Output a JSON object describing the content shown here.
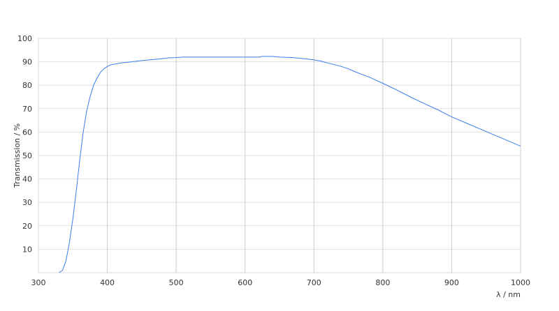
{
  "chart_data": {
    "type": "line",
    "title": "",
    "xlabel": "λ / nm",
    "ylabel": "Transmission / %",
    "xlim": [
      300,
      1000
    ],
    "ylim": [
      0,
      100
    ],
    "x_ticks": [
      "300",
      "400",
      "500",
      "600",
      "700",
      "800",
      "900",
      "1000"
    ],
    "y_ticks": [
      "10",
      "20",
      "30",
      "40",
      "50",
      "60",
      "70",
      "80",
      "90",
      "100"
    ],
    "grid": true,
    "line_color": "#3b7ded",
    "series": [
      {
        "x": [
          330,
          335,
          340,
          345,
          350,
          355,
          360,
          365,
          370,
          375,
          380,
          385,
          390,
          395,
          400,
          405,
          410,
          420,
          430,
          450,
          475,
          490,
          500,
          510,
          550,
          600,
          620,
          625,
          640,
          650,
          670,
          690,
          700,
          710,
          720,
          740,
          750,
          760,
          780,
          800,
          820,
          840,
          860,
          880,
          900,
          920,
          940,
          960,
          980,
          1000
        ],
        "y": [
          0,
          1,
          5,
          13,
          23,
          35,
          48,
          60,
          69,
          75,
          80,
          83,
          85.5,
          87,
          88,
          88.7,
          89,
          89.5,
          89.8,
          90.5,
          91.2,
          91.7,
          91.8,
          92,
          92,
          92,
          92,
          92.3,
          92.3,
          92,
          91.8,
          91.2,
          90.8,
          90.3,
          89.5,
          88,
          87,
          85.7,
          83.5,
          80.8,
          78,
          75,
          72.2,
          69.5,
          66.5,
          64,
          61.5,
          59,
          56.5,
          54
        ]
      }
    ]
  }
}
